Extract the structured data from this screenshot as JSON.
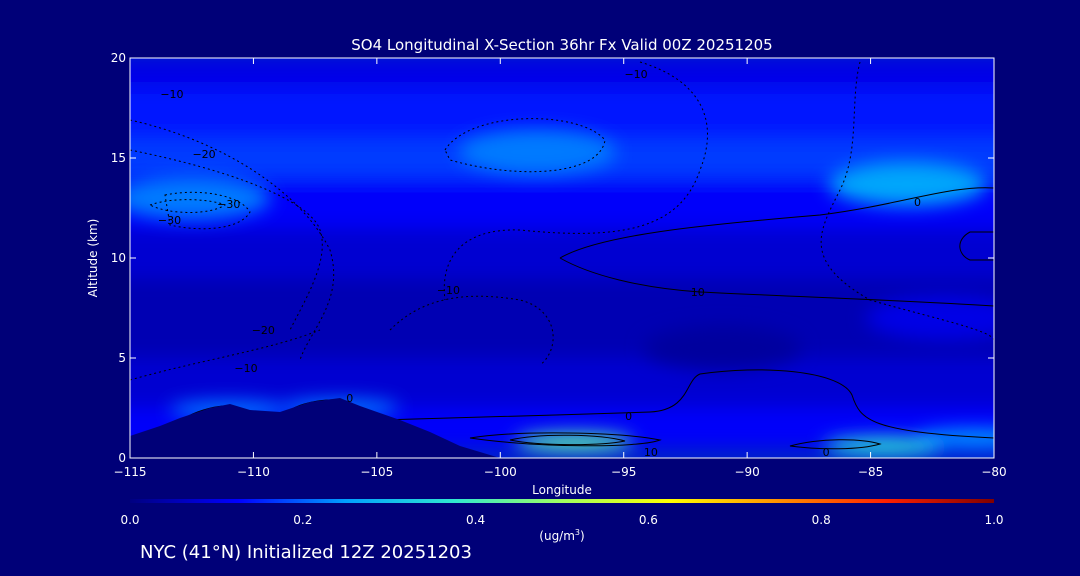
{
  "chart_data": {
    "type": "heatmap",
    "title": "SO4 Longitudinal X-Section 36hr  Fx Valid 00Z 20251205",
    "xlabel": "Longitude",
    "ylabel": "Altitude (km)",
    "xlim": [
      -115,
      -80
    ],
    "ylim": [
      0,
      20
    ],
    "x_ticks": [
      -115,
      -110,
      -105,
      -100,
      -95,
      -90,
      -85,
      -80
    ],
    "x_tick_labels": [
      "−115",
      "−110",
      "−105",
      "−100",
      "−95",
      "−90",
      "−85",
      "−80"
    ],
    "y_ticks": [
      0,
      5,
      10,
      15,
      20
    ],
    "y_tick_labels": [
      "0",
      "5",
      "10",
      "15",
      "20"
    ],
    "colorbar": {
      "ticks": [
        0.0,
        0.2,
        0.4,
        0.6,
        0.8,
        1.0
      ],
      "tick_labels": [
        "0.0",
        "0.2",
        "0.4",
        "0.6",
        "0.8",
        "1.0"
      ],
      "label_main": "(ug/m",
      "label_sup": "3",
      "label_end": ")",
      "colors": [
        "#000080",
        "#0000ff",
        "#00a0ff",
        "#30e8d0",
        "#a0ff60",
        "#ffff00",
        "#ff9000",
        "#ff2000",
        "#800000"
      ]
    },
    "field_bands": [
      {
        "y": [
          18.5,
          20.0
        ],
        "value": 0.1
      },
      {
        "y": [
          16.0,
          18.5
        ],
        "value": 0.14
      },
      {
        "y": [
          14.0,
          16.0
        ],
        "value": 0.17
      },
      {
        "y": [
          11.5,
          14.0
        ],
        "value": 0.12
      },
      {
        "y": [
          9.0,
          11.5
        ],
        "value": 0.08
      },
      {
        "y": [
          5.0,
          9.0
        ],
        "value": 0.05
      },
      {
        "y": [
          2.5,
          5.0
        ],
        "value": 0.08
      },
      {
        "y": [
          0.5,
          2.5
        ],
        "value": 0.12
      }
    ],
    "field_patches": [
      {
        "lon": -112.5,
        "alt": 13.0,
        "value": 0.22
      },
      {
        "lon": -98.5,
        "alt": 15.3,
        "value": 0.22
      },
      {
        "lon": -83.5,
        "alt": 13.7,
        "value": 0.26
      },
      {
        "lon": -82.0,
        "alt": 7.0,
        "value": 0.1
      },
      {
        "lon": -91.0,
        "alt": 5.5,
        "value": 0.03
      },
      {
        "lon": -97.0,
        "alt": 0.8,
        "value": 0.42
      },
      {
        "lon": -84.5,
        "alt": 0.6,
        "value": 0.36
      },
      {
        "lon": -80.8,
        "alt": 1.0,
        "value": 0.25
      },
      {
        "lon": -106.5,
        "alt": 2.5,
        "value": 0.22
      },
      {
        "lon": -111.0,
        "alt": 2.4,
        "value": 0.22
      }
    ],
    "contour_labels": [
      {
        "text": "−10",
        "lon": -113.3,
        "alt": 18.2
      },
      {
        "text": "−20",
        "lon": -112.0,
        "alt": 15.2
      },
      {
        "text": "−30",
        "lon": -111.0,
        "alt": 12.7
      },
      {
        "text": "−30",
        "lon": -113.4,
        "alt": 11.9
      },
      {
        "text": "−20",
        "lon": -109.6,
        "alt": 6.4
      },
      {
        "text": "−10",
        "lon": -110.3,
        "alt": 4.5
      },
      {
        "text": "−10",
        "lon": -94.5,
        "alt": 19.2
      },
      {
        "text": "−10",
        "lon": -102.1,
        "alt": 8.4
      },
      {
        "text": "0",
        "lon": -94.8,
        "alt": 2.1
      },
      {
        "text": "0",
        "lon": -86.8,
        "alt": 0.3
      },
      {
        "text": "0",
        "lon": -83.1,
        "alt": 12.8
      },
      {
        "text": "10",
        "lon": -93.9,
        "alt": 0.3
      },
      {
        "text": "10",
        "lon": -92.0,
        "alt": 8.3
      },
      {
        "text": "0",
        "lon": -106.1,
        "alt": 3.0
      }
    ]
  },
  "footer": "NYC (41°N) Initialized 12Z 20251203"
}
